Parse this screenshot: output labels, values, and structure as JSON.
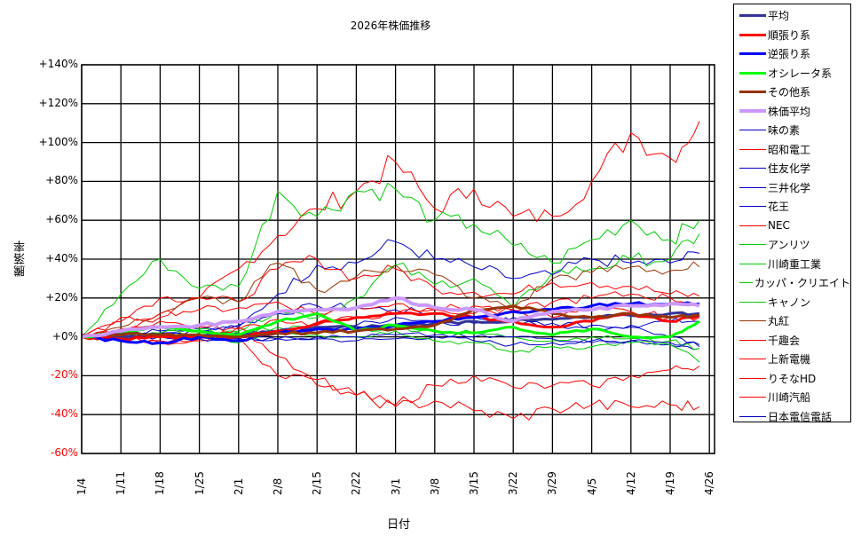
{
  "chart_data": {
    "type": "line",
    "title": "2026年株価推移",
    "xlabel": "日付",
    "ylabel": "騰落率",
    "ylim": [
      -60,
      140
    ],
    "yticks": [
      "+140%",
      "+120%",
      "+100%",
      "+80%",
      "+60%",
      "+40%",
      "+20%",
      "+0%",
      "-20%",
      "-40%",
      "-60%"
    ],
    "ytick_values": [
      140,
      120,
      100,
      80,
      60,
      40,
      20,
      0,
      -20,
      -40,
      -60
    ],
    "negative_tick_color": "#ff0000",
    "x": [
      "1/4",
      "1/11",
      "1/18",
      "1/25",
      "2/1",
      "2/8",
      "2/15",
      "2/22",
      "3/1",
      "3/8",
      "3/15",
      "3/22",
      "3/29",
      "4/5",
      "4/12",
      "4/19",
      "4/26"
    ],
    "x_note": "values per weekly tick; last value approx 4/24",
    "grid": true,
    "legend_position": "right",
    "series": [
      {
        "name": "平均",
        "color": "#333399",
        "width": 3,
        "values": [
          0,
          0,
          1,
          0,
          1,
          3,
          5,
          5,
          6,
          7,
          8,
          8,
          9,
          10,
          11,
          12,
          12
        ]
      },
      {
        "name": "順張り系",
        "color": "#ff0000",
        "width": 3,
        "values": [
          0,
          -1,
          0,
          0,
          0,
          3,
          7,
          10,
          12,
          12,
          10,
          8,
          5,
          8,
          12,
          8,
          11
        ]
      },
      {
        "name": "逆張り系",
        "color": "#0000ff",
        "width": 3,
        "values": [
          0,
          -2,
          -3,
          0,
          -2,
          2,
          4,
          4,
          6,
          8,
          10,
          13,
          14,
          16,
          17,
          17,
          17
        ]
      },
      {
        "name": "オシレータ系",
        "color": "#00ff00",
        "width": 3,
        "values": [
          0,
          3,
          5,
          3,
          1,
          8,
          12,
          3,
          6,
          3,
          2,
          5,
          1,
          4,
          0,
          0,
          8
        ]
      },
      {
        "name": "その他系",
        "color": "#993300",
        "width": 3,
        "values": [
          1,
          1,
          1,
          1,
          0,
          2,
          2,
          3,
          4,
          6,
          14,
          16,
          12,
          10,
          12,
          10,
          11
        ]
      },
      {
        "name": "株価平均",
        "color": "#cc99ff",
        "width": 4,
        "values": [
          0,
          3,
          5,
          6,
          8,
          13,
          14,
          15,
          20,
          15,
          14,
          8,
          13,
          14,
          16,
          17,
          16
        ]
      },
      {
        "name": "味の素",
        "color": "#0000cc",
        "width": 1,
        "values": [
          0,
          2,
          3,
          4,
          6,
          12,
          16,
          15,
          14,
          12,
          10,
          8,
          5,
          4,
          6,
          8,
          8
        ]
      },
      {
        "name": "昭和電工",
        "color": "#ff0000",
        "width": 1,
        "values": [
          0,
          4,
          10,
          20,
          35,
          52,
          66,
          75,
          90,
          66,
          76,
          62,
          62,
          80,
          105,
          92,
          111
        ]
      },
      {
        "name": "住友化学",
        "color": "#0000cc",
        "width": 1,
        "values": [
          0,
          1,
          2,
          3,
          5,
          22,
          37,
          38,
          49,
          40,
          36,
          30,
          32,
          40,
          38,
          38,
          43
        ]
      },
      {
        "name": "三井化学",
        "color": "#0000cc",
        "width": 1,
        "values": [
          0,
          1,
          2,
          2,
          2,
          3,
          4,
          6,
          10,
          8,
          7,
          10,
          7,
          6,
          5,
          0,
          -5
        ]
      },
      {
        "name": "花王",
        "color": "#0000cc",
        "width": 1,
        "values": [
          0,
          0,
          0,
          -1,
          -1,
          -1,
          -1,
          -2,
          -1,
          0,
          -2,
          -4,
          -3,
          -3,
          -2,
          -4,
          -6
        ]
      },
      {
        "name": "NEC",
        "color": "#ff0000",
        "width": 1,
        "values": [
          0,
          10,
          20,
          20,
          18,
          35,
          40,
          30,
          35,
          25,
          23,
          22,
          28,
          28,
          26,
          22,
          21
        ]
      },
      {
        "name": "アンリツ",
        "color": "#00cc00",
        "width": 1,
        "values": [
          0,
          22,
          40,
          25,
          26,
          75,
          62,
          75,
          76,
          60,
          58,
          47,
          38,
          50,
          60,
          50,
          60
        ]
      },
      {
        "name": "川崎重工業",
        "color": "#00cc00",
        "width": 1,
        "values": [
          0,
          2,
          6,
          4,
          3,
          14,
          10,
          20,
          37,
          27,
          30,
          15,
          33,
          35,
          40,
          40,
          53
        ]
      },
      {
        "name": "カッパ・クリエイト",
        "color": "#00cc00",
        "width": 1,
        "values": [
          0,
          2,
          5,
          3,
          -3,
          3,
          1,
          0,
          3,
          -2,
          -3,
          -8,
          -5,
          -5,
          -3,
          -4,
          -13
        ]
      },
      {
        "name": "キャノン",
        "color": "#00cc00",
        "width": 1,
        "values": [
          0,
          1,
          2,
          2,
          2,
          5,
          4,
          3,
          5,
          3,
          2,
          0,
          -2,
          0,
          -1,
          -2,
          -6
        ]
      },
      {
        "name": "丸紅",
        "color": "#993300",
        "width": 1,
        "values": [
          0,
          5,
          12,
          20,
          18,
          38,
          24,
          31,
          37,
          32,
          20,
          15,
          30,
          33,
          36,
          34,
          36
        ]
      },
      {
        "name": "千趣会",
        "color": "#ff0000",
        "width": 1,
        "values": [
          0,
          8,
          12,
          14,
          15,
          18,
          12,
          15,
          17,
          14,
          16,
          13,
          18,
          20,
          22,
          20,
          17
        ]
      },
      {
        "name": "上新電機",
        "color": "#ff0000",
        "width": 1,
        "values": [
          0,
          3,
          8,
          5,
          4,
          9,
          6,
          10,
          12,
          14,
          12,
          14,
          10,
          14,
          13,
          10,
          10
        ]
      },
      {
        "name": "りそなHD",
        "color": "#ff0000",
        "width": 1,
        "values": [
          0,
          -1,
          -3,
          -2,
          5,
          -10,
          -25,
          -30,
          -35,
          -25,
          -20,
          -26,
          -25,
          -25,
          -20,
          -17,
          -15
        ]
      },
      {
        "name": "川崎汽船",
        "color": "#ff0000",
        "width": 1,
        "values": [
          0,
          -1,
          -2,
          -1,
          0,
          -20,
          -22,
          -30,
          -36,
          -33,
          -38,
          -42,
          -37,
          -35,
          -36,
          -35,
          -36
        ]
      },
      {
        "name": "日本電信電話",
        "color": "#0000cc",
        "width": 1,
        "values": [
          0,
          0,
          0,
          -1,
          -1,
          -1,
          0,
          0,
          1,
          1,
          0,
          0,
          -1,
          -2,
          -2,
          -3,
          -4
        ]
      }
    ]
  }
}
